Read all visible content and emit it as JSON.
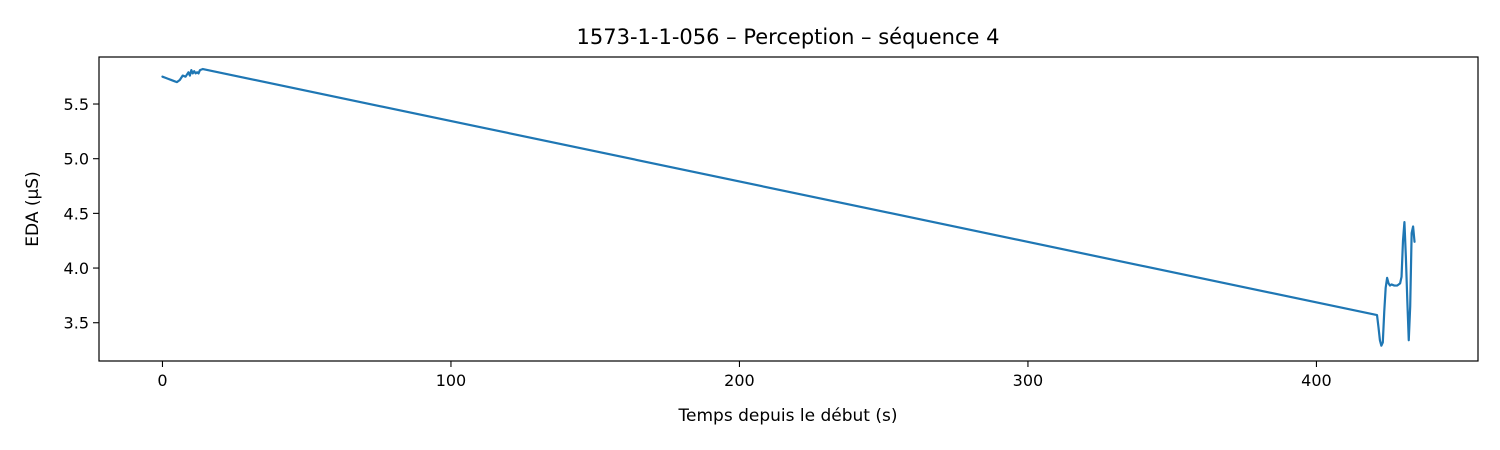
{
  "chart_data": {
    "type": "line",
    "title": "1573-1-1-056 – Perception – séquence 4",
    "xlabel": "Temps depuis le début (s)",
    "ylabel": "EDA (µS)",
    "xlim": [
      -22,
      456
    ],
    "ylim": [
      3.15,
      5.93
    ],
    "xticks": [
      0,
      100,
      200,
      300,
      400
    ],
    "xtick_labels": [
      "0",
      "100",
      "200",
      "300",
      "400"
    ],
    "yticks": [
      3.5,
      4.0,
      4.5,
      5.0,
      5.5
    ],
    "ytick_labels": [
      "3.5",
      "4.0",
      "4.5",
      "5.0",
      "5.5"
    ],
    "grid": false,
    "series": [
      {
        "name": "",
        "color": "#1f77b4",
        "x": [
          0,
          1,
          2,
          3,
          4,
          5,
          6,
          7,
          8,
          9,
          9.5,
          10,
          10.5,
          11,
          11.5,
          12,
          12.5,
          13,
          14,
          421,
          421.5,
          422,
          422.5,
          423,
          423.5,
          424,
          424.5,
          425,
          425.5,
          426,
          427,
          428,
          429,
          429.5,
          430,
          430.5,
          431,
          431.5,
          432,
          432.5,
          433,
          433.5,
          434
        ],
        "y": [
          5.75,
          5.74,
          5.73,
          5.72,
          5.71,
          5.7,
          5.72,
          5.76,
          5.75,
          5.79,
          5.76,
          5.81,
          5.78,
          5.8,
          5.78,
          5.79,
          5.78,
          5.81,
          5.82,
          3.57,
          3.46,
          3.34,
          3.29,
          3.32,
          3.6,
          3.82,
          3.91,
          3.86,
          3.84,
          3.85,
          3.84,
          3.84,
          3.86,
          3.92,
          4.25,
          4.42,
          4.1,
          3.7,
          3.34,
          3.65,
          4.32,
          4.38,
          4.24
        ]
      }
    ]
  }
}
